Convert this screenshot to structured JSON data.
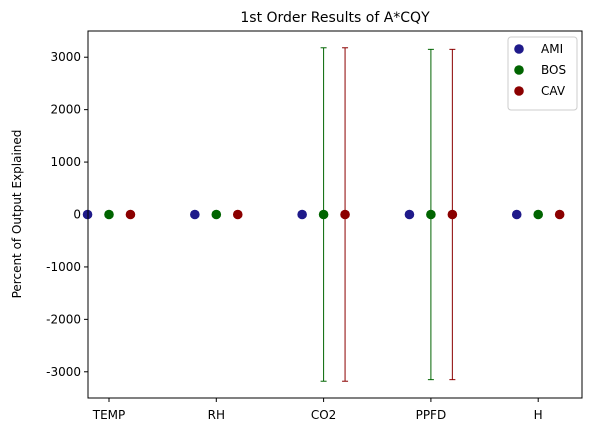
{
  "chart_data": {
    "type": "scatter",
    "title": "1st Order Results of A*CQY",
    "xlabel": "",
    "ylabel": "Percent of Output Explained",
    "categories": [
      "TEMP",
      "RH",
      "CO2",
      "PPFD",
      "H"
    ],
    "ylim": [
      -3500,
      3500
    ],
    "yticks": [
      -3000,
      -2000,
      -1000,
      0,
      1000,
      2000,
      3000
    ],
    "grid": false,
    "legend_position": "top-right",
    "series": [
      {
        "name": "AMI",
        "color": "#1f1a8a",
        "offset": -0.2,
        "values": [
          0,
          0,
          0,
          0,
          0
        ],
        "errors": [
          0,
          0,
          0,
          0,
          0
        ]
      },
      {
        "name": "BOS",
        "color": "#006400",
        "offset": 0.0,
        "values": [
          0,
          0,
          0,
          0,
          0
        ],
        "errors": [
          0,
          0,
          3180,
          3150,
          0
        ]
      },
      {
        "name": "CAV",
        "color": "#8b0000",
        "offset": 0.2,
        "values": [
          0,
          0,
          0,
          0,
          0
        ],
        "errors": [
          0,
          0,
          3180,
          3150,
          0
        ]
      }
    ]
  }
}
